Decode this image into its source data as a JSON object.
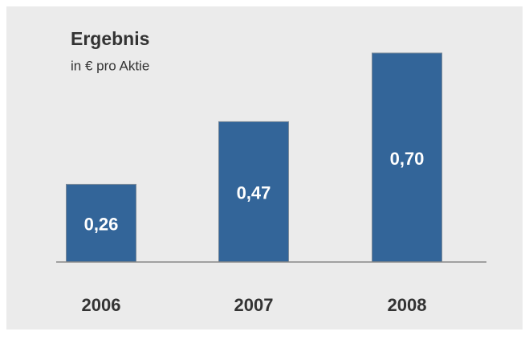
{
  "chart_data": {
    "type": "bar",
    "title": "Ergebnis",
    "subtitle": "in € pro Aktie",
    "categories": [
      "2006",
      "2007",
      "2008"
    ],
    "values": [
      0.26,
      0.47,
      0.7
    ],
    "value_labels": [
      "0,26",
      "0,47",
      "0,70"
    ],
    "color": "#336599"
  }
}
